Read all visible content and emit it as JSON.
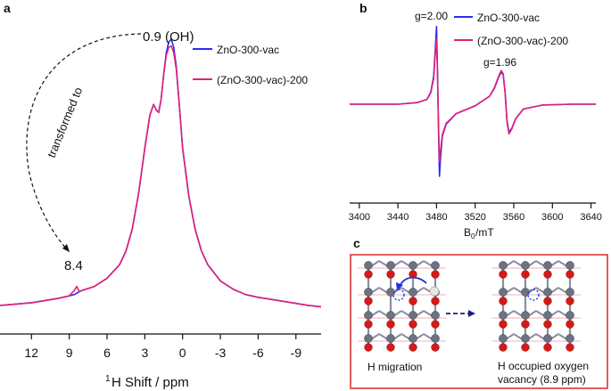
{
  "panels": {
    "a": "a",
    "b": "b",
    "c": "c"
  },
  "chart_data": [
    {
      "type": "line",
      "panel": "a",
      "xlabel_sup": "1",
      "xlabel_main": "H Shift / ppm",
      "ylabel": "",
      "xlim": [
        14.5,
        -11
      ],
      "ylim": [
        0,
        1.0
      ],
      "xticks": [
        12,
        9,
        6,
        3,
        0,
        -3,
        -6,
        -9
      ],
      "xtick_labels": [
        "12",
        "9",
        "6",
        "3",
        "0",
        "-3",
        "-6",
        "-9"
      ],
      "annotations": {
        "top": "0.9 (OH)",
        "bottom": "8.4",
        "arrow_label": "transformed to"
      },
      "series": [
        {
          "name": "ZnO-300-vac",
          "color": "#2b2bf0",
          "x": [
            14.5,
            12,
            10,
            9.5,
            9,
            8.6,
            8.4,
            8.2,
            8,
            7,
            6,
            5,
            4.5,
            4,
            3.5,
            3,
            2.6,
            2.3,
            2.1,
            1.9,
            1.7,
            1.5,
            1.3,
            1.1,
            0.9,
            0.7,
            0.5,
            0.3,
            0,
            -0.5,
            -1,
            -1.5,
            -2,
            -3,
            -4,
            -5,
            -6,
            -8,
            -10,
            -11
          ],
          "y": [
            0.02,
            0.03,
            0.045,
            0.05,
            0.055,
            0.06,
            0.065,
            0.07,
            0.075,
            0.09,
            0.12,
            0.17,
            0.22,
            0.3,
            0.43,
            0.6,
            0.72,
            0.76,
            0.74,
            0.73,
            0.78,
            0.87,
            0.95,
            0.99,
            1.0,
            0.97,
            0.9,
            0.78,
            0.6,
            0.42,
            0.3,
            0.22,
            0.17,
            0.11,
            0.08,
            0.06,
            0.05,
            0.035,
            0.02,
            0.015
          ]
        },
        {
          "name": "(ZnO-300-vac)-200",
          "color": "#e0207a",
          "x": [
            14.5,
            12,
            10,
            9.5,
            9,
            8.6,
            8.4,
            8.2,
            8,
            7,
            6,
            5,
            4.5,
            4,
            3.5,
            3,
            2.6,
            2.3,
            2.1,
            1.9,
            1.7,
            1.5,
            1.3,
            1.1,
            0.9,
            0.7,
            0.5,
            0.3,
            0,
            -0.5,
            -1,
            -1.5,
            -2,
            -3,
            -4,
            -5,
            -6,
            -8,
            -10,
            -11
          ],
          "y": [
            0.02,
            0.03,
            0.045,
            0.05,
            0.055,
            0.075,
            0.09,
            0.07,
            0.075,
            0.09,
            0.12,
            0.17,
            0.22,
            0.3,
            0.43,
            0.6,
            0.72,
            0.76,
            0.74,
            0.73,
            0.78,
            0.87,
            0.94,
            0.97,
            0.975,
            0.95,
            0.89,
            0.78,
            0.6,
            0.42,
            0.3,
            0.22,
            0.17,
            0.11,
            0.08,
            0.06,
            0.05,
            0.035,
            0.02,
            0.015
          ]
        }
      ]
    },
    {
      "type": "line",
      "panel": "b",
      "xlabel_main": "B",
      "xlabel_sub": "0",
      "xlabel_unit": "/mT",
      "xlim": [
        3390,
        3645
      ],
      "ylim": [
        -1.0,
        1.0
      ],
      "xticks": [
        3400,
        3440,
        3480,
        3520,
        3560,
        3600,
        3640
      ],
      "xtick_labels": [
        "3400",
        "3440",
        "3480",
        "3520",
        "3560",
        "3600",
        "3640"
      ],
      "annotations": {
        "peak1": "g=2.00",
        "peak2": "g=1.96"
      },
      "series": [
        {
          "name": "ZnO-300-vac",
          "color": "#2b2bf0",
          "x": [
            3390,
            3440,
            3460,
            3470,
            3474,
            3477,
            3479,
            3480,
            3481,
            3482,
            3483,
            3484,
            3486,
            3490,
            3500,
            3520,
            3535,
            3540,
            3544,
            3547,
            3549,
            3551,
            3553,
            3555,
            3558,
            3562,
            3570,
            3590,
            3620,
            3645
          ],
          "y": [
            0,
            0,
            0.02,
            0.06,
            0.15,
            0.35,
            0.75,
            0.97,
            0.4,
            -0.3,
            -0.9,
            -0.7,
            -0.4,
            -0.25,
            -0.12,
            -0.02,
            0.1,
            0.2,
            0.33,
            0.4,
            0.37,
            0.15,
            -0.2,
            -0.35,
            -0.3,
            -0.18,
            -0.06,
            -0.01,
            0,
            0
          ]
        },
        {
          "name": "(ZnO-300-vac)-200",
          "color": "#e0207a",
          "x": [
            3390,
            3440,
            3460,
            3470,
            3474,
            3477,
            3479,
            3480,
            3481,
            3482,
            3483,
            3484,
            3486,
            3490,
            3500,
            3520,
            3535,
            3540,
            3544,
            3547,
            3549,
            3551,
            3553,
            3555,
            3558,
            3562,
            3570,
            3590,
            3620,
            3645
          ],
          "y": [
            0,
            0,
            0.02,
            0.06,
            0.14,
            0.32,
            0.68,
            0.82,
            0.35,
            -0.25,
            -0.72,
            -0.6,
            -0.38,
            -0.24,
            -0.12,
            -0.02,
            0.1,
            0.21,
            0.34,
            0.42,
            0.38,
            0.14,
            -0.22,
            -0.37,
            -0.31,
            -0.18,
            -0.06,
            -0.01,
            0,
            0
          ]
        }
      ]
    }
  ],
  "schematic": {
    "label_left": "H migration",
    "label_right_1": "H occupied oxygen",
    "label_right_2": "vacancy (8.9 ppm)"
  }
}
